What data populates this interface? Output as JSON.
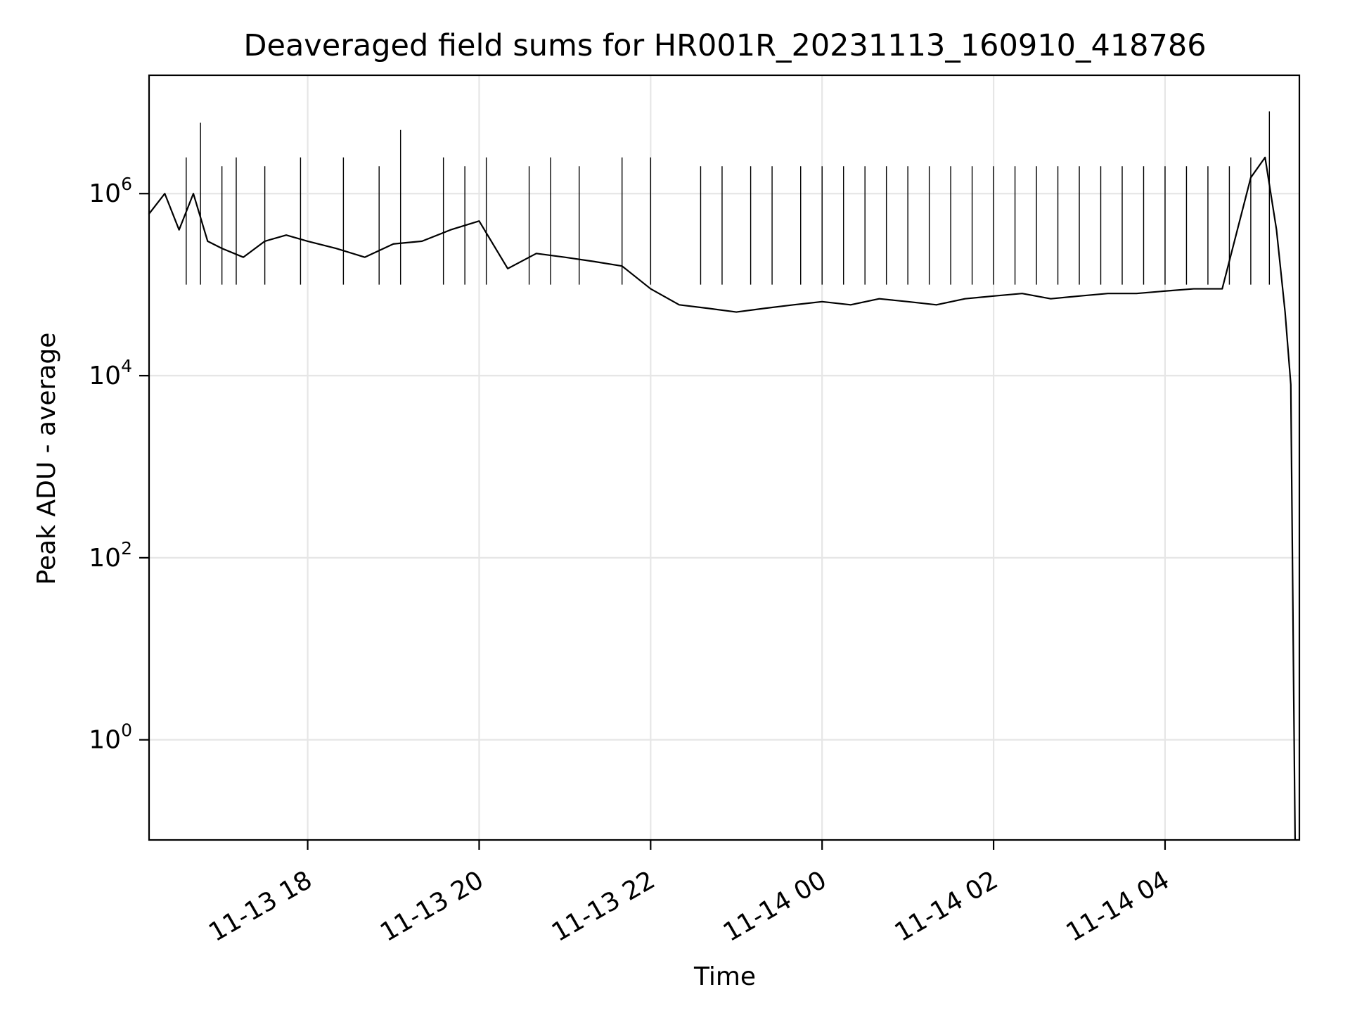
{
  "chart_data": {
    "type": "line",
    "title": "Deaveraged field sums for HR001R_20231113_160910_418786",
    "xlabel": "Time",
    "ylabel": "Peak ADU - average",
    "yscale": "log",
    "grid": true,
    "line_color": "#000000",
    "grid_color": "#e6e6e6",
    "xlim": [
      "2023-11-13 16:09",
      "2023-11-14 05:34"
    ],
    "ylim_log10": [
      -1.1,
      7.3
    ],
    "x_ticks": [
      {
        "value": "2023-11-13 18:00",
        "label": "11-13 18"
      },
      {
        "value": "2023-11-13 20:00",
        "label": "11-13 20"
      },
      {
        "value": "2023-11-13 22:00",
        "label": "11-13 22"
      },
      {
        "value": "2023-11-14 00:00",
        "label": "11-14 00"
      },
      {
        "value": "2023-11-14 02:00",
        "label": "11-14 02"
      },
      {
        "value": "2023-11-14 04:00",
        "label": "11-14 04"
      }
    ],
    "y_ticks": [
      {
        "value": 1,
        "base": "10",
        "exp": "0"
      },
      {
        "value": 100,
        "base": "10",
        "exp": "2"
      },
      {
        "value": 10000,
        "base": "10",
        "exp": "4"
      },
      {
        "value": 1000000,
        "base": "10",
        "exp": "6"
      }
    ],
    "series": [
      {
        "x": [
          "2023-11-13 16:09",
          "2023-11-13 16:20",
          "2023-11-13 16:30",
          "2023-11-13 16:40",
          "2023-11-13 16:50",
          "2023-11-13 17:00",
          "2023-11-13 17:15",
          "2023-11-13 17:30",
          "2023-11-13 17:45",
          "2023-11-13 18:00",
          "2023-11-13 18:20",
          "2023-11-13 18:40",
          "2023-11-13 19:00",
          "2023-11-13 19:20",
          "2023-11-13 19:40",
          "2023-11-13 20:00",
          "2023-11-13 20:20",
          "2023-11-13 20:40",
          "2023-11-13 21:00",
          "2023-11-13 21:20",
          "2023-11-13 21:40",
          "2023-11-13 22:00",
          "2023-11-13 22:20",
          "2023-11-13 22:40",
          "2023-11-13 23:00",
          "2023-11-13 23:20",
          "2023-11-13 23:40",
          "2023-11-14 00:00",
          "2023-11-14 00:20",
          "2023-11-14 00:40",
          "2023-11-14 01:00",
          "2023-11-14 01:20",
          "2023-11-14 01:40",
          "2023-11-14 02:00",
          "2023-11-14 02:20",
          "2023-11-14 02:40",
          "2023-11-14 03:00",
          "2023-11-14 03:20",
          "2023-11-14 03:40",
          "2023-11-14 04:00",
          "2023-11-14 04:20",
          "2023-11-14 04:40",
          "2023-11-14 05:00",
          "2023-11-14 05:10",
          "2023-11-14 05:18",
          "2023-11-14 05:24",
          "2023-11-14 05:28",
          "2023-11-14 05:31",
          "2023-11-14 05:32"
        ],
        "y": [
          600000,
          1000000,
          400000,
          1000000,
          300000,
          250000,
          200000,
          300000,
          350000,
          300000,
          250000,
          200000,
          280000,
          300000,
          400000,
          500000,
          150000,
          220000,
          200000,
          180000,
          160000,
          90000,
          60000,
          55000,
          50000,
          55000,
          60000,
          65000,
          60000,
          70000,
          65000,
          60000,
          70000,
          75000,
          80000,
          70000,
          75000,
          80000,
          80000,
          85000,
          90000,
          90000,
          1500000,
          2500000,
          400000,
          50000,
          8000,
          0.08,
          0.05
        ]
      }
    ],
    "spikes": {
      "x": [
        "2023-11-13 16:35",
        "2023-11-13 16:45",
        "2023-11-13 17:00",
        "2023-11-13 17:10",
        "2023-11-13 17:30",
        "2023-11-13 17:55",
        "2023-11-13 18:25",
        "2023-11-13 18:50",
        "2023-11-13 19:05",
        "2023-11-13 19:35",
        "2023-11-13 19:50",
        "2023-11-13 20:05",
        "2023-11-13 20:35",
        "2023-11-13 20:50",
        "2023-11-13 21:10",
        "2023-11-13 21:40",
        "2023-11-13 22:00",
        "2023-11-13 22:35",
        "2023-11-13 22:50",
        "2023-11-13 23:10",
        "2023-11-13 23:25",
        "2023-11-13 23:45",
        "2023-11-14 00:00",
        "2023-11-14 00:15",
        "2023-11-14 00:30",
        "2023-11-14 00:45",
        "2023-11-14 01:00",
        "2023-11-14 01:15",
        "2023-11-14 01:30",
        "2023-11-14 01:45",
        "2023-11-14 02:00",
        "2023-11-14 02:15",
        "2023-11-14 02:30",
        "2023-11-14 02:45",
        "2023-11-14 03:00",
        "2023-11-14 03:15",
        "2023-11-14 03:30",
        "2023-11-14 03:45",
        "2023-11-14 04:00",
        "2023-11-14 04:15",
        "2023-11-14 04:30",
        "2023-11-14 04:45",
        "2023-11-14 05:00",
        "2023-11-14 05:13"
      ],
      "y": [
        2500000,
        6000000,
        2000000,
        2500000,
        2000000,
        2500000,
        2500000,
        2000000,
        5000000,
        2500000,
        2000000,
        2500000,
        2000000,
        2500000,
        2000000,
        2500000,
        2500000,
        2000000,
        2000000,
        2000000,
        2000000,
        2000000,
        2000000,
        2000000,
        2000000,
        2000000,
        2000000,
        2000000,
        2000000,
        2000000,
        2000000,
        2000000,
        2000000,
        2000000,
        2000000,
        2000000,
        2000000,
        2000000,
        2000000,
        2000000,
        2000000,
        2000000,
        2500000,
        8000000
      ]
    }
  }
}
